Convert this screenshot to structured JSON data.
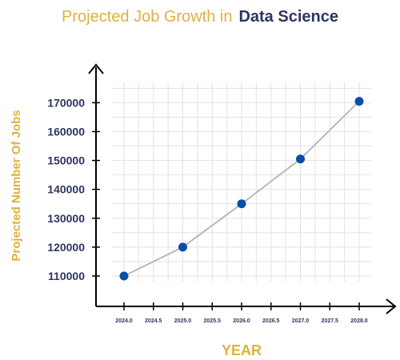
{
  "chart_data": {
    "type": "line",
    "title_part1": "Projected Job Growth in",
    "title_part2": "Data Science",
    "xlabel": "YEAR",
    "ylabel": "Projected Number Of Jobs",
    "x_ticks": [
      "2024.0",
      "2024.5",
      "2025.0",
      "2025.5",
      "2026.0",
      "2026.5",
      "2027.0",
      "2027.5",
      "2028.0"
    ],
    "x_tick_values": [
      2024.0,
      2024.5,
      2025.0,
      2025.5,
      2026.0,
      2026.5,
      2027.0,
      2027.5,
      2028.0
    ],
    "y_ticks": [
      "110000",
      "120000",
      "130000",
      "140000",
      "150000",
      "160000",
      "170000"
    ],
    "y_tick_values": [
      110000,
      120000,
      130000,
      140000,
      150000,
      160000,
      170000
    ],
    "series": [
      {
        "x": [
          2024,
          2025,
          2026,
          2027,
          2028
        ],
        "y": [
          110000,
          120000,
          135000,
          150500,
          170500
        ]
      }
    ],
    "xlim": [
      2023.5,
      2028.3
    ],
    "ylim": [
      100000,
      177000
    ],
    "grid": true,
    "colors": {
      "point": "#0B4EA8",
      "line": "#B8B8B8",
      "title_accent": "#E0B040",
      "title_dark": "#2E3560"
    }
  }
}
